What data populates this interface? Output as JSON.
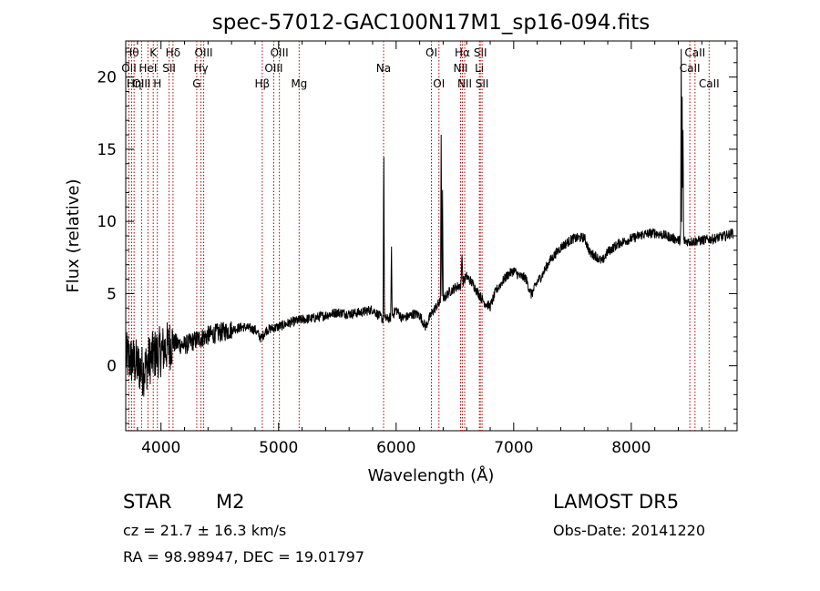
{
  "chart_data": {
    "type": "line",
    "title": "spec-57012-GAC100N17M1_sp16-094.fits",
    "xlabel": "Wavelength (Å)",
    "ylabel": "Flux (relative)",
    "xlim": [
      3700,
      8900
    ],
    "ylim": [
      -4.5,
      22.5
    ],
    "x_ticks": [
      4000,
      5000,
      6000,
      7000,
      8000
    ],
    "y_ticks": [
      0,
      5,
      10,
      15,
      20
    ],
    "grid": false,
    "legend": "none",
    "series_color": "#000000",
    "line_marker_color": "#aa0000",
    "line_markers": [
      {
        "x": 3727,
        "label": "OII",
        "row": 2
      },
      {
        "x": 3750,
        "label": "Hθ",
        "row": 1
      },
      {
        "x": 3771,
        "label": "Hη",
        "row": 3
      },
      {
        "x": 3835,
        "label": "OIII",
        "row": 3
      },
      {
        "x": 3889,
        "label": "HeI",
        "row": 2
      },
      {
        "x": 3934,
        "label": "K",
        "row": 1
      },
      {
        "x": 3969,
        "label": "H",
        "row": 3
      },
      {
        "x": 4069,
        "label": "SII",
        "row": 2
      },
      {
        "x": 4102,
        "label": "Hδ",
        "row": 1
      },
      {
        "x": 4304,
        "label": "G",
        "row": 3
      },
      {
        "x": 4340,
        "label": "Hγ",
        "row": 2
      },
      {
        "x": 4363,
        "label": "OIII",
        "row": 1
      },
      {
        "x": 4861,
        "label": "Hβ",
        "row": 3
      },
      {
        "x": 4959,
        "label": "OIII",
        "row": 2
      },
      {
        "x": 5007,
        "label": "OIII",
        "row": 1
      },
      {
        "x": 5175,
        "label": "Mg",
        "row": 3
      },
      {
        "x": 5893,
        "label": "Na",
        "row": 2
      },
      {
        "x": 6300,
        "label": "OI",
        "row": 1
      },
      {
        "x": 6364,
        "label": "OI",
        "row": 3
      },
      {
        "x": 6548,
        "label": "NII",
        "row": 2
      },
      {
        "x": 6563,
        "label": "Hα",
        "row": 1
      },
      {
        "x": 6583,
        "label": "NII",
        "row": 3
      },
      {
        "x": 6708,
        "label": "Li",
        "row": 2
      },
      {
        "x": 6716,
        "label": "SII",
        "row": 1
      },
      {
        "x": 6731,
        "label": "SII",
        "row": 3
      },
      {
        "x": 8498,
        "label": "CaII",
        "row": 2
      },
      {
        "x": 8542,
        "label": "CaII",
        "row": 1
      },
      {
        "x": 8662,
        "label": "CaII",
        "row": 3
      }
    ],
    "spectrum_anchors": [
      [
        3700,
        0.6
      ],
      [
        3780,
        0.2
      ],
      [
        3850,
        -0.4
      ],
      [
        3900,
        0.4
      ],
      [
        3950,
        0.8
      ],
      [
        4000,
        1.0
      ],
      [
        4100,
        1.6
      ],
      [
        4200,
        1.4
      ],
      [
        4300,
        1.8
      ],
      [
        4400,
        2.1
      ],
      [
        4500,
        2.3
      ],
      [
        4600,
        2.5
      ],
      [
        4700,
        2.7
      ],
      [
        4800,
        2.5
      ],
      [
        4850,
        1.9
      ],
      [
        4900,
        2.5
      ],
      [
        5000,
        2.7
      ],
      [
        5100,
        3.0
      ],
      [
        5200,
        3.2
      ],
      [
        5300,
        3.3
      ],
      [
        5400,
        3.5
      ],
      [
        5500,
        3.7
      ],
      [
        5600,
        3.6
      ],
      [
        5700,
        3.7
      ],
      [
        5800,
        3.9
      ],
      [
        5890,
        3.2
      ],
      [
        5950,
        3.3
      ],
      [
        6000,
        3.9
      ],
      [
        6050,
        3.3
      ],
      [
        6100,
        3.4
      ],
      [
        6150,
        3.6
      ],
      [
        6200,
        3.5
      ],
      [
        6250,
        2.7
      ],
      [
        6300,
        3.6
      ],
      [
        6350,
        4.2
      ],
      [
        6400,
        4.6
      ],
      [
        6450,
        5.1
      ],
      [
        6500,
        5.4
      ],
      [
        6550,
        5.6
      ],
      [
        6600,
        6.2
      ],
      [
        6650,
        5.7
      ],
      [
        6700,
        5.0
      ],
      [
        6750,
        4.4
      ],
      [
        6800,
        4.1
      ],
      [
        6850,
        5.2
      ],
      [
        6900,
        5.8
      ],
      [
        6950,
        6.3
      ],
      [
        7000,
        6.6
      ],
      [
        7050,
        6.2
      ],
      [
        7100,
        6.1
      ],
      [
        7150,
        4.9
      ],
      [
        7200,
        5.8
      ],
      [
        7250,
        6.4
      ],
      [
        7300,
        7.2
      ],
      [
        7400,
        8.2
      ],
      [
        7500,
        8.8
      ],
      [
        7600,
        8.9
      ],
      [
        7650,
        7.8
      ],
      [
        7700,
        7.6
      ],
      [
        7750,
        7.2
      ],
      [
        7800,
        7.9
      ],
      [
        7900,
        8.5
      ],
      [
        8000,
        8.8
      ],
      [
        8100,
        9.1
      ],
      [
        8200,
        9.2
      ],
      [
        8300,
        9.0
      ],
      [
        8400,
        8.7
      ],
      [
        8500,
        8.6
      ],
      [
        8600,
        8.7
      ],
      [
        8700,
        8.8
      ],
      [
        8800,
        9.0
      ],
      [
        8860,
        9.2
      ]
    ],
    "spectral_features": [
      {
        "x": 5895,
        "y": 15.7,
        "width": 6
      },
      {
        "x": 5960,
        "y": 8.6,
        "width": 6
      },
      {
        "x": 6383,
        "y": 16.4,
        "width": 6
      },
      {
        "x": 6395,
        "y": 12.5,
        "width": 5
      },
      {
        "x": 6560,
        "y": 7.8,
        "width": 8
      },
      {
        "x": 8425,
        "y": 22.5,
        "width": 5
      },
      {
        "x": 8432,
        "y": 19.5,
        "width": 5
      },
      {
        "x": 8440,
        "y": 17.0,
        "width": 5
      }
    ]
  },
  "info": {
    "object_class": "STAR",
    "subclass": "M2",
    "survey": "LAMOST  DR5",
    "redshift": "cz = 21.7 ± 16.3 km/s",
    "obs_date": "Obs-Date: 20141220",
    "coords": "RA =  98.98947, DEC =  19.01797"
  }
}
